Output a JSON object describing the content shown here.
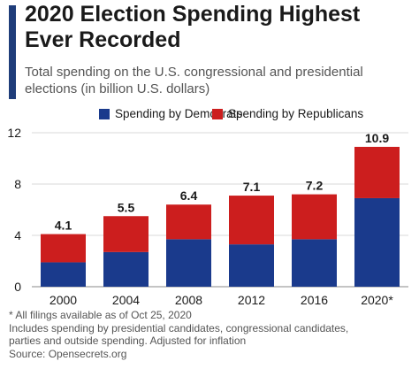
{
  "header": {
    "title_line1": "2020 Election Spending Highest",
    "title_line2": "Ever Recorded",
    "subtitle_line1": "Total spending on the U.S. congressional and presidential",
    "subtitle_line2": "elections (in billion U.S. dollars)"
  },
  "colors": {
    "accent": "#1f3d7a",
    "democrats": "#1a3a8c",
    "republicans": "#cc1e1e"
  },
  "chart_data": {
    "type": "bar",
    "stacked": true,
    "categories": [
      "2000",
      "2004",
      "2008",
      "2012",
      "2016",
      "2020*"
    ],
    "series": [
      {
        "name": "Spending by Democrats",
        "values": [
          1.9,
          2.7,
          3.7,
          3.3,
          3.7,
          6.9
        ]
      },
      {
        "name": "Spending by Republicans",
        "values": [
          2.2,
          2.8,
          2.7,
          3.8,
          3.5,
          4.0
        ]
      }
    ],
    "totals": [
      4.1,
      5.5,
      6.4,
      7.1,
      7.2,
      10.9
    ],
    "total_labels": [
      "4.1",
      "5.5",
      "6.4",
      "7.1",
      "7.2",
      "10.9"
    ],
    "yticks": [
      0,
      4,
      8,
      12
    ],
    "ytick_labels": [
      "0",
      "4",
      "8",
      "12"
    ],
    "ylim": [
      0,
      12
    ],
    "grid": true,
    "legend_position": "top"
  },
  "notes": {
    "line1": "* All filings available as of Oct 25, 2020",
    "line2": "Includes spending by presidential candidates, congressional candidates,",
    "line3": "parties and outside spending. Adjusted for inflation",
    "line4": "Source: Opensecrets.org"
  }
}
